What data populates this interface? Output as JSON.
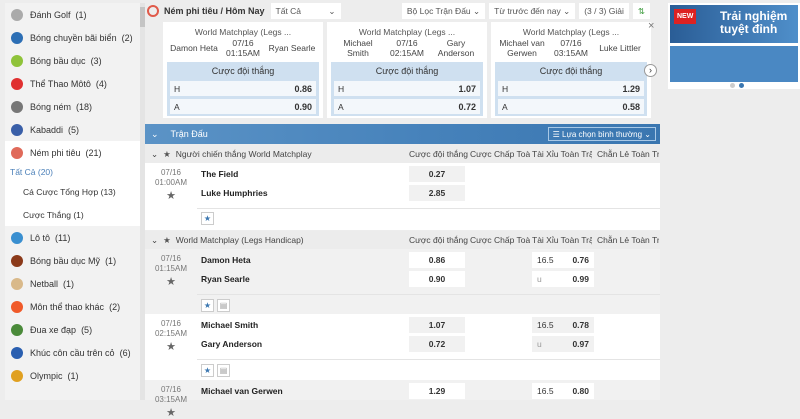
{
  "sidebar": {
    "items": [
      {
        "label": "Đánh Golf",
        "count": "(1)",
        "color": "#aaaaaa"
      },
      {
        "label": "Bóng chuyền bãi biển",
        "count": "(2)",
        "color": "#2d6fb5"
      },
      {
        "label": "Bóng bầu dục",
        "count": "(3)",
        "color": "#8fc33a"
      },
      {
        "label": "Thể Thao Môtô",
        "count": "(4)",
        "color": "#e03030"
      },
      {
        "label": "Bóng ném",
        "count": "(18)",
        "color": "#777777"
      },
      {
        "label": "Kabaddi",
        "count": "(5)",
        "color": "#3a5fa8"
      },
      {
        "label": "Ném phi tiêu",
        "count": "(21)",
        "color": "#e06a5a"
      }
    ],
    "subitems": [
      {
        "label": "Tất Cả (20)"
      },
      {
        "label": "Cá Cược Tổng Hợp (13)"
      },
      {
        "label": "Cược Thắng (1)"
      }
    ],
    "items2": [
      {
        "label": "Lô tô",
        "count": "(11)",
        "color": "#3a8fd0"
      },
      {
        "label": "Bóng bầu dục Mỹ",
        "count": "(1)",
        "color": "#8b3a1a"
      },
      {
        "label": "Netball",
        "count": "(1)",
        "color": "#d9b98a"
      },
      {
        "label": "Môn thể thao khác",
        "count": "(2)",
        "color": "#f05a2a"
      },
      {
        "label": "Đua xe đạp",
        "count": "(5)",
        "color": "#4a8a3a"
      },
      {
        "label": "Khúc côn cầu trên cỏ",
        "count": "(6)",
        "color": "#2a5fb0"
      },
      {
        "label": "Olympic",
        "count": "(1)",
        "color": "#e0a020"
      }
    ]
  },
  "topbar": {
    "title": "Ném phi tiêu / Hôm Nay",
    "filter": "Tất Cả",
    "match_filter": "Bộ Lọc Trận Đấu",
    "sort": "Từ trước đến nay",
    "leagues": "(3 / 3) Giải"
  },
  "cards": [
    {
      "league": "World Matchplay (Legs ...",
      "home": "Damon Heta",
      "date": "07/16",
      "time": "01:15AM",
      "away": "Ryan Searle",
      "market": "Cược đội thắng",
      "h": "0.86",
      "a": "0.90"
    },
    {
      "league": "World Matchplay (Legs ...",
      "home": "Michael Smith",
      "date": "07/16",
      "time": "02:15AM",
      "away": "Gary Anderson",
      "market": "Cược đội thắng",
      "h": "1.07",
      "a": "0.72"
    },
    {
      "league": "World Matchplay (Legs ...",
      "home": "Michael van Gerwen",
      "date": "07/16",
      "time": "03:15AM",
      "away": "Luke Littler",
      "market": "Cược đội thắng",
      "h": "1.29",
      "a": "0.58"
    }
  ],
  "labels": {
    "h": "H",
    "a": "A",
    "u": "u"
  },
  "table": {
    "title": "Trận Đấu",
    "option": "Lựa chọn bình thường",
    "columns": [
      "Cược đội thắng",
      "Cược Chấp Toà...",
      "Tài Xỉu Toàn Trận",
      "Chẵn Lẻ Toàn Tr..."
    ],
    "groups": [
      "Người chiến thắng World Matchplay",
      "World Matchplay (Legs Handicap)"
    ],
    "matches": [
      {
        "date": "07/16",
        "time": "01:00AM",
        "t1": "The Field",
        "t2": "Luke Humphries",
        "o1": "0.27",
        "o2": "2.85"
      },
      {
        "date": "07/16",
        "time": "01:15AM",
        "t1": "Damon Heta",
        "t2": "Ryan Searle",
        "o1": "0.86",
        "o2": "0.90",
        "line": "16.5",
        "ou1": "0.76",
        "ou2": "0.99"
      },
      {
        "date": "07/16",
        "time": "02:15AM",
        "t1": "Michael Smith",
        "t2": "Gary Anderson",
        "o1": "1.07",
        "o2": "0.72",
        "line": "16.5",
        "ou1": "0.78",
        "ou2": "0.97"
      },
      {
        "date": "07/16",
        "time": "03:15AM",
        "t1": "Michael van Gerwen",
        "o1": "1.29",
        "line": "16.5",
        "ou1": "0.80"
      }
    ]
  },
  "banner": {
    "badge": "NEW",
    "text": "Trải nghiệm tuyệt đỉnh"
  }
}
